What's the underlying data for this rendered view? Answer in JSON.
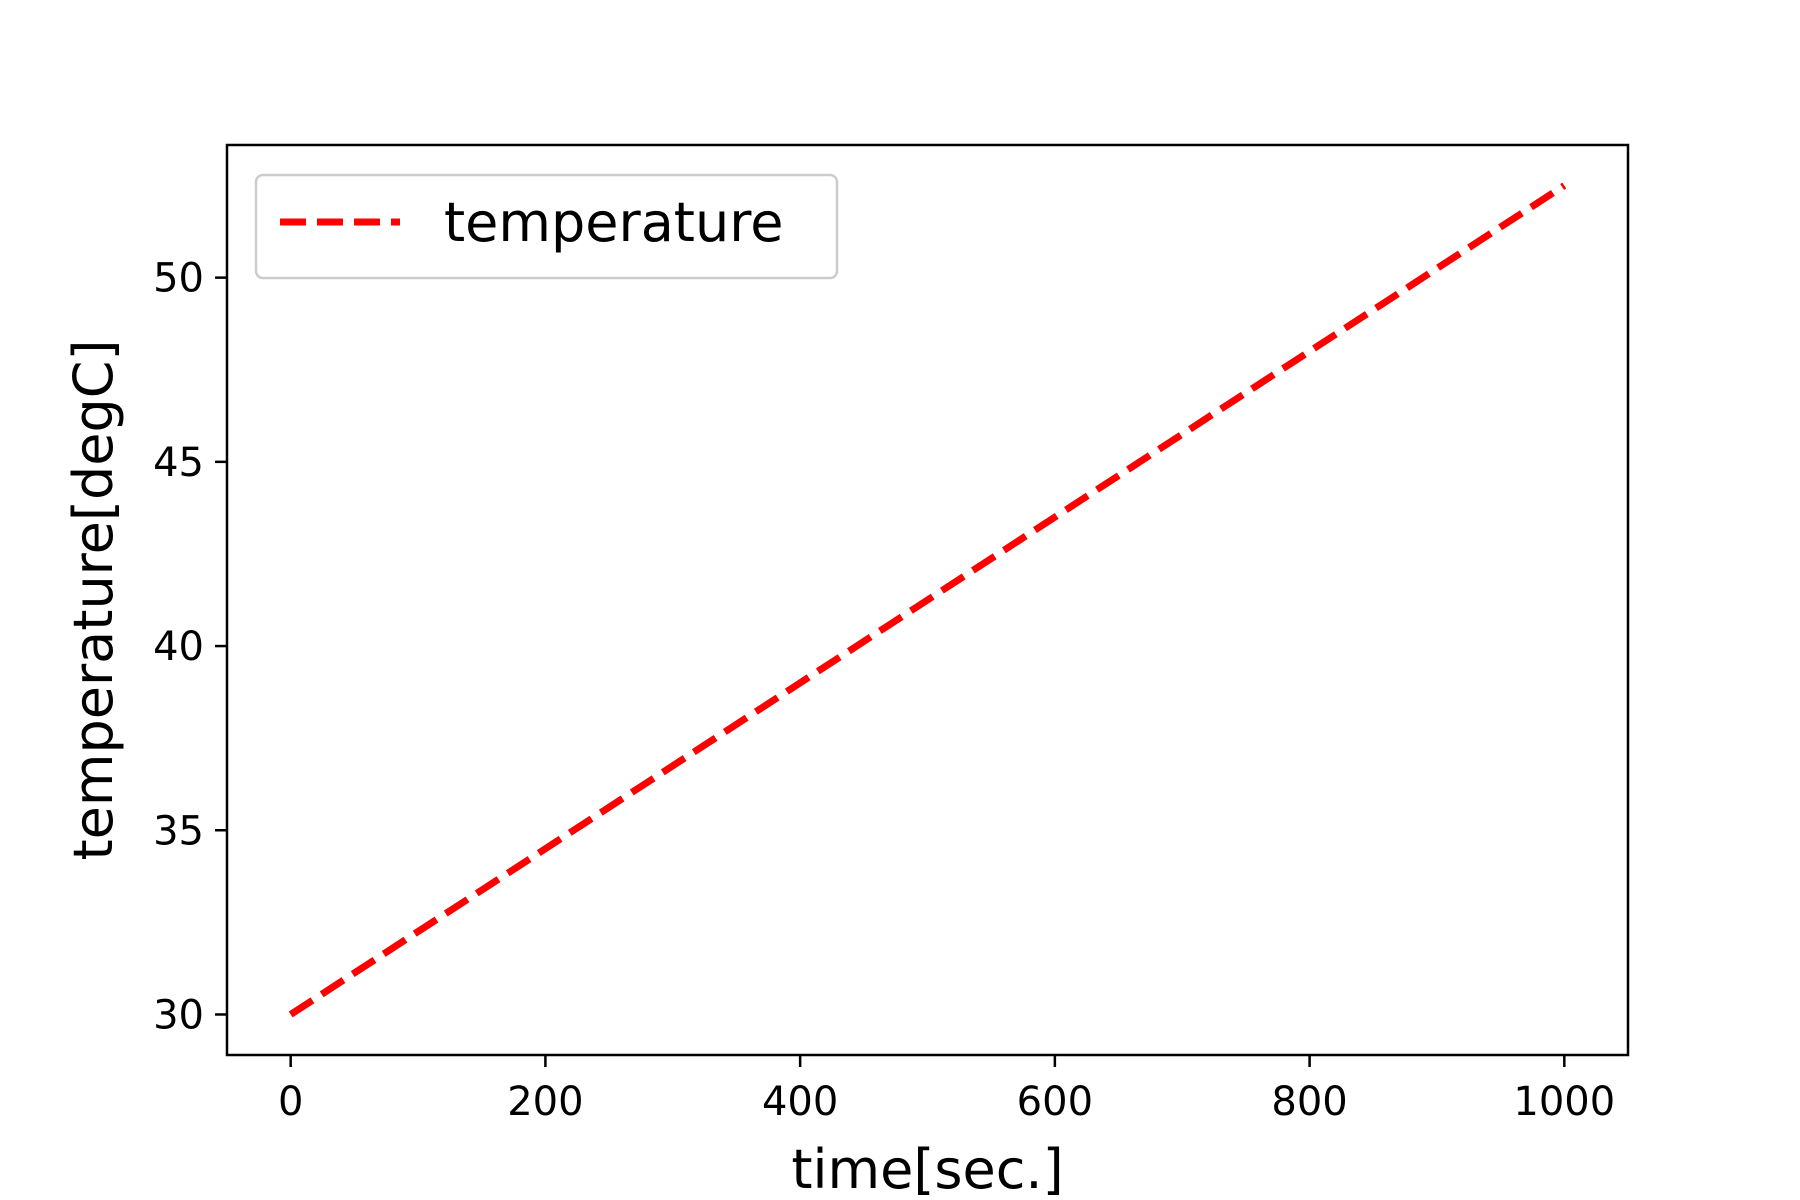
{
  "chart_data": {
    "type": "line",
    "title": "",
    "xlabel": "time[sec.]",
    "ylabel": "temperature[degC]",
    "xlim": [
      -50,
      1050
    ],
    "ylim": [
      28.9,
      53.6
    ],
    "xticks": [
      0,
      200,
      400,
      600,
      800,
      1000
    ],
    "yticks": [
      30,
      35,
      40,
      45,
      50
    ],
    "grid": false,
    "legend_position": "upper-left",
    "series": [
      {
        "name": "temperature",
        "color": "#ff0000",
        "line_style": "dashed",
        "x": [
          0,
          1000
        ],
        "y": [
          30.0,
          52.5
        ]
      }
    ]
  }
}
